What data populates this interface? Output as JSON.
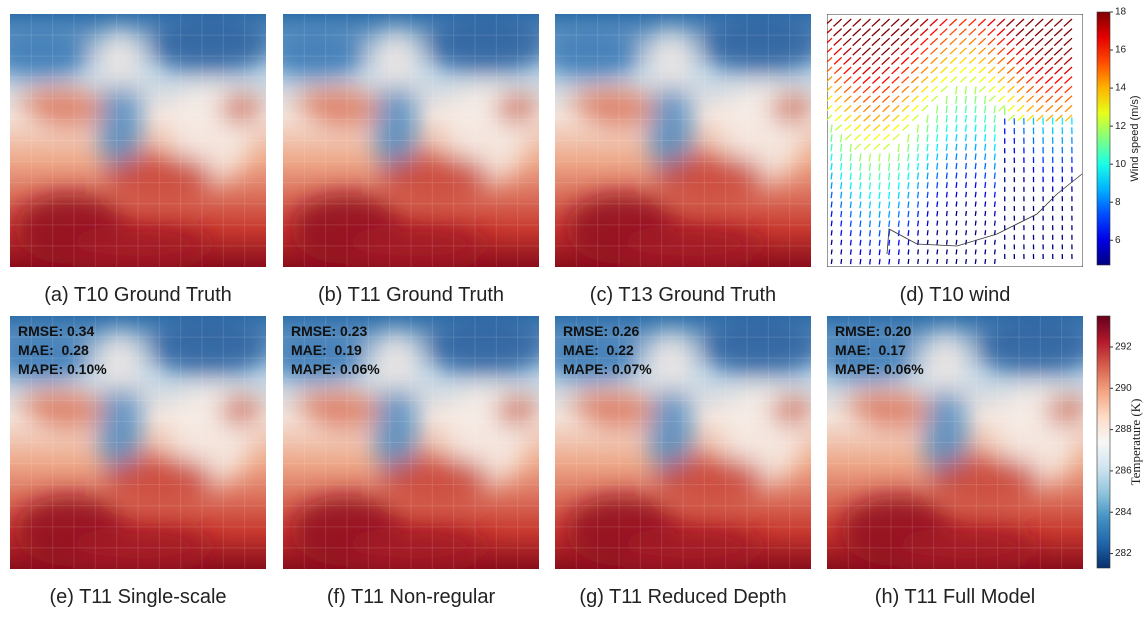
{
  "panels": [
    {
      "caption": "(a) T10 Ground Truth"
    },
    {
      "caption": "(b) T11 Ground Truth"
    },
    {
      "caption": "(c) T13 Ground Truth"
    },
    {
      "caption": "(d) T10 wind"
    },
    {
      "caption": "(e) T11 Single-scale",
      "metrics": [
        "RMSE: 0.34",
        "MAE:  0.28",
        "MAPE: 0.10%"
      ]
    },
    {
      "caption": "(f) T11 Non-regular",
      "metrics": [
        "RMSE: 0.23",
        "MAE:  0.19",
        "MAPE: 0.06%"
      ]
    },
    {
      "caption": "(g) T11 Reduced Depth",
      "metrics": [
        "RMSE: 0.26",
        "MAE:  0.22",
        "MAPE: 0.07%"
      ]
    },
    {
      "caption": "(h) T11 Full Model",
      "metrics": [
        "RMSE: 0.20",
        "MAE:  0.17",
        "MAPE: 0.06%"
      ]
    }
  ],
  "colorbars": [
    {
      "label": "Wind speed (m/s)",
      "lim": [
        4.7,
        18
      ],
      "ticks": [
        6,
        8,
        10,
        12,
        14,
        16,
        18
      ]
    },
    {
      "label": "Temperature (K)",
      "lim": [
        281.3,
        293.5
      ],
      "ticks": [
        282,
        284,
        286,
        288,
        290,
        292
      ]
    }
  ]
}
